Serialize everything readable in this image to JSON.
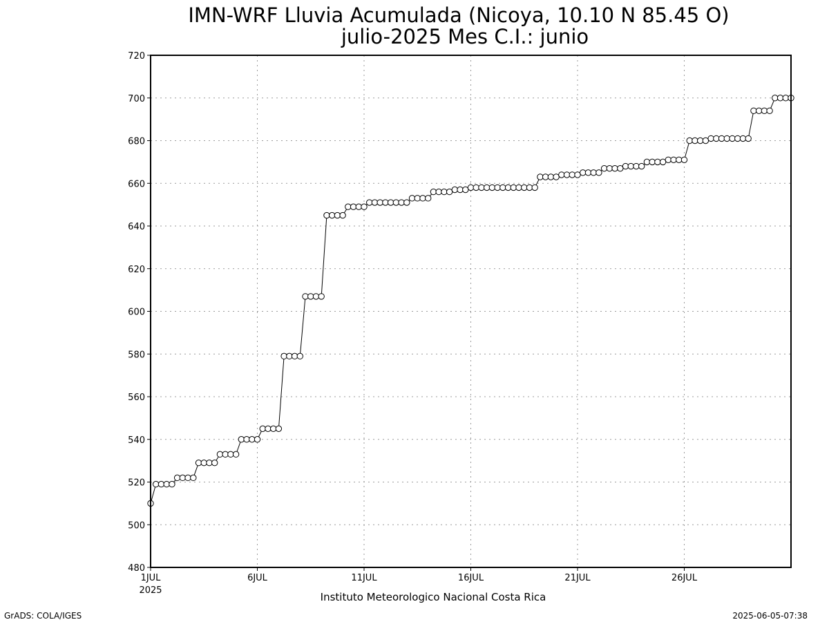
{
  "chart_data": {
    "type": "line",
    "title": "IMN-WRF  Lluvia Acumulada (Nicoya, 10.10  N 85.45  O)",
    "subtitle": "julio-2025 Mes C.I.: junio",
    "xlabel": "",
    "ylabel": "",
    "ylim": [
      480,
      720
    ],
    "yticks": [
      480,
      500,
      520,
      540,
      560,
      580,
      600,
      620,
      640,
      660,
      680,
      700,
      720
    ],
    "xlim_days": [
      1,
      31
    ],
    "xticks": [
      {
        "day": 1,
        "label": "1JUL",
        "sublabel": "2025"
      },
      {
        "day": 6,
        "label": "6JUL"
      },
      {
        "day": 11,
        "label": "11JUL"
      },
      {
        "day": 16,
        "label": "16JUL"
      },
      {
        "day": 21,
        "label": "21JUL"
      },
      {
        "day": 26,
        "label": "26JUL"
      }
    ],
    "grid": true,
    "marker": "open-circle",
    "series": [
      {
        "step_hours": 6,
        "start": "2025-07-01 00Z",
        "values": [
          510,
          519,
          519,
          519,
          519,
          522,
          522,
          522,
          522,
          529,
          529,
          529,
          529,
          533,
          533,
          533,
          533,
          540,
          540,
          540,
          540,
          545,
          545,
          545,
          545,
          579,
          579,
          579,
          579,
          607,
          607,
          607,
          607,
          645,
          645,
          645,
          645,
          649,
          649,
          649,
          649,
          651,
          651,
          651,
          651,
          651,
          651,
          651,
          651,
          653,
          653,
          653,
          653,
          656,
          656,
          656,
          656,
          657,
          657,
          657,
          658,
          658,
          658,
          658,
          658,
          658,
          658,
          658,
          658,
          658,
          658,
          658,
          658,
          663,
          663,
          663,
          663,
          664,
          664,
          664,
          664,
          665,
          665,
          665,
          665,
          667,
          667,
          667,
          667,
          668,
          668,
          668,
          668,
          670,
          670,
          670,
          670,
          671,
          671,
          671,
          671,
          680,
          680,
          680,
          680,
          681,
          681,
          681,
          681,
          681,
          681,
          681,
          681,
          694,
          694,
          694,
          694,
          700,
          700,
          700,
          700
        ]
      }
    ]
  },
  "footer": {
    "institution": "Instituto Meteorologico Nacional Costa Rica",
    "software": "GrADS: COLA/IGES",
    "timestamp": "2025-06-05-07:38"
  }
}
